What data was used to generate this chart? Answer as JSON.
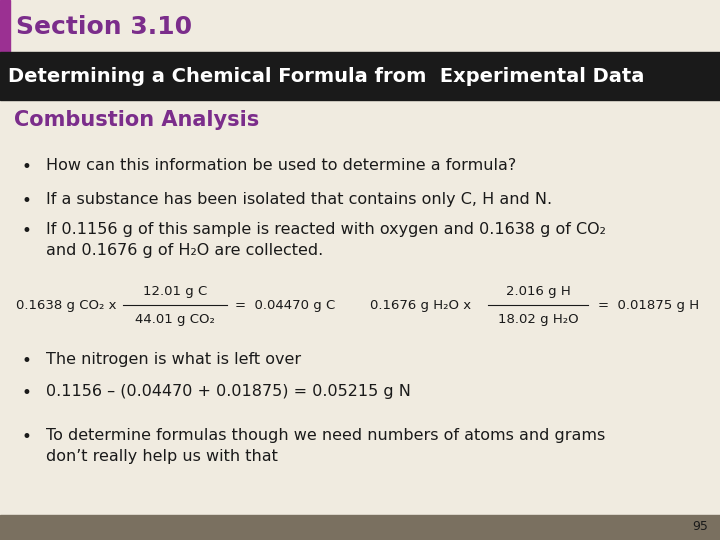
{
  "title_section": "Section 3.10",
  "title_section_color": "#7B2D8B",
  "title_bar_text": "Determining a Chemical Formula from  Experimental Data",
  "title_bar_bg": "#1a1a1a",
  "title_bar_text_color": "#FFFFFF",
  "subtitle": "Combustion Analysis",
  "subtitle_color": "#7B2D8B",
  "bg_color": "#F0EBE0",
  "footer_bg": "#7A7060",
  "page_number": "95",
  "bullet_color": "#1a1a1a",
  "bullet_text_color": "#1a1a1a",
  "purple_bar_color": "#9B3092",
  "bullets": [
    "How can this information be used to determine a formula?",
    "If a substance has been isolated that contains only C, H and N.",
    "If 0.1156 g of this sample is reacted with oxygen and 0.1638 g of CO₂\nand 0.1676 g of H₂O are collected."
  ],
  "equation_line1_left": "0.1638 g CO₂ x",
  "equation_frac_num_left": "12.01 g C",
  "equation_frac_den_left": "44.01 g CO₂",
  "equation_result_left": "=  0.04470 g C",
  "equation_line1_right": "0.1676 g H₂O x",
  "equation_frac_num_right": "2.016 g H",
  "equation_frac_den_right": "18.02 g H₂O",
  "equation_result_right": "=  0.01875 g H",
  "bullets2": [
    "The nitrogen is what is left over",
    "0.1156 – (0.04470 + 0.01875) = 0.05215 g N"
  ],
  "bullets3": [
    "To determine formulas though we need numbers of atoms and grams\ndon’t really help us with that"
  ],
  "figw": 7.2,
  "figh": 5.4,
  "dpi": 100
}
